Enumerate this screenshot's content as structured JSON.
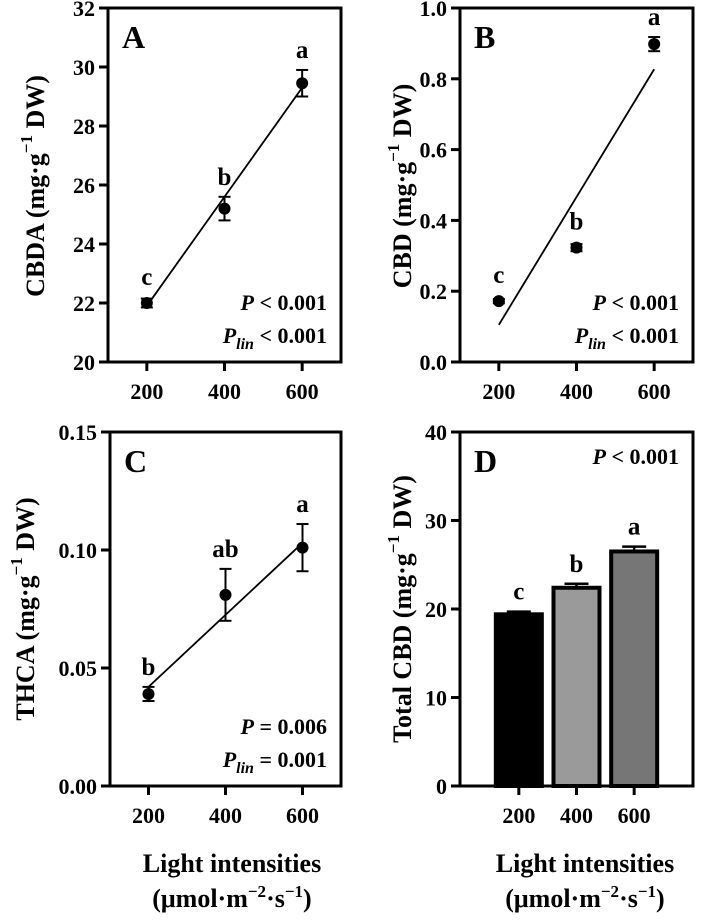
{
  "chart_data": [
    {
      "panel": "A",
      "type": "scatter",
      "ylabel": "CBDA (mg·g⁻¹ DW)",
      "ylabel_parts": [
        "CBDA (mg·g",
        "−1",
        " DW)"
      ],
      "ylim": [
        20,
        32
      ],
      "yticks": [
        "20",
        "22",
        "24",
        "26",
        "28",
        "30",
        "32"
      ],
      "xlim": [
        100,
        700
      ],
      "xticks": [
        "200",
        "400",
        "600"
      ],
      "points": [
        {
          "x": 200,
          "y": 22.0,
          "err": 0.15,
          "letter": "c"
        },
        {
          "x": 400,
          "y": 25.2,
          "err": 0.4,
          "letter": "b"
        },
        {
          "x": 600,
          "y": 29.45,
          "err": 0.45,
          "letter": "a"
        }
      ],
      "fit_line": {
        "x": [
          200,
          600
        ],
        "y": [
          21.9,
          29.3
        ]
      },
      "stats": [
        {
          "label": "P",
          "sub": "",
          "value": " < 0.001"
        },
        {
          "label": "P",
          "sub": "lin",
          "value": " < 0.001"
        }
      ]
    },
    {
      "panel": "B",
      "type": "scatter",
      "ylabel": "CBD (mg·g⁻¹ DW)",
      "ylabel_parts": [
        "CBD (mg·g",
        "−1",
        " DW)"
      ],
      "ylim": [
        0.0,
        1.0
      ],
      "yticks": [
        "0.0",
        "0.2",
        "0.4",
        "0.6",
        "0.8",
        "1.0"
      ],
      "xlim": [
        100,
        700
      ],
      "xticks": [
        "200",
        "400",
        "600"
      ],
      "points": [
        {
          "x": 200,
          "y": 0.172,
          "err": 0.006,
          "letter": "c"
        },
        {
          "x": 400,
          "y": 0.323,
          "err": 0.01,
          "letter": "b"
        },
        {
          "x": 600,
          "y": 0.898,
          "err": 0.02,
          "letter": "a"
        }
      ],
      "fit_line": {
        "x": [
          200,
          600
        ],
        "y": [
          0.105,
          0.827
        ]
      },
      "stats": [
        {
          "label": "P",
          "sub": "",
          "value": " < 0.001"
        },
        {
          "label": "P",
          "sub": "lin",
          "value": " < 0.001"
        }
      ]
    },
    {
      "panel": "C",
      "type": "scatter",
      "ylabel": "THCA (mg·g⁻¹ DW)",
      "ylabel_parts": [
        "THCA (mg·g",
        "−1",
        " DW)"
      ],
      "ylim": [
        0.0,
        0.15
      ],
      "yticks": [
        "0.00",
        "0.05",
        "0.10",
        "0.15"
      ],
      "xlim": [
        100,
        700
      ],
      "xticks": [
        "200",
        "400",
        "600"
      ],
      "points": [
        {
          "x": 200,
          "y": 0.039,
          "err": 0.003,
          "letter": "b"
        },
        {
          "x": 400,
          "y": 0.081,
          "err": 0.011,
          "letter": "ab"
        },
        {
          "x": 600,
          "y": 0.101,
          "err": 0.01,
          "letter": "a"
        }
      ],
      "fit_line": {
        "x": [
          200,
          600
        ],
        "y": [
          0.042,
          0.103
        ]
      },
      "stats": [
        {
          "label": "P",
          "sub": "",
          "value": " = 0.006"
        },
        {
          "label": "P",
          "sub": "lin",
          "value": " = 0.001"
        }
      ]
    },
    {
      "panel": "D",
      "type": "bar",
      "ylabel": "Total CBD (mg·g⁻¹ DW)",
      "ylabel_parts": [
        "Total CBD (mg·g",
        "−1",
        " DW)"
      ],
      "ylim": [
        0,
        40
      ],
      "yticks": [
        "0",
        "10",
        "20",
        "30",
        "40"
      ],
      "categories": [
        "200",
        "400",
        "600"
      ],
      "values": [
        19.4,
        22.4,
        26.5
      ],
      "errors": [
        0.3,
        0.45,
        0.55
      ],
      "letters": [
        "c",
        "b",
        "a"
      ],
      "colors": [
        "#000000",
        "#9a9a9a",
        "#767676"
      ],
      "stats": [
        {
          "label": "P",
          "sub": "",
          "value": " < 0.001"
        }
      ]
    }
  ],
  "xaxis_title": {
    "line1": "Light intensities",
    "line2_pre": "(μmol·m",
    "sup1": "−2",
    "line2_mid": "·s",
    "sup2": "−1",
    "line2_post": ")"
  }
}
